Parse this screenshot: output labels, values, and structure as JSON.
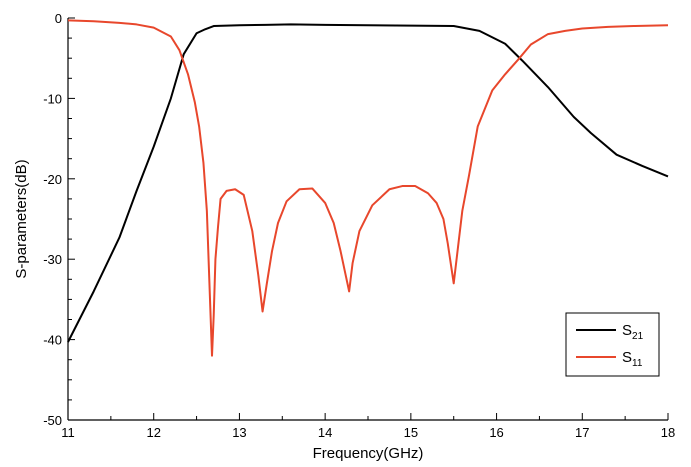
{
  "chart_data": {
    "type": "line",
    "xlabel": "Frequency(GHz)",
    "ylabel": "S-parameters(dB)",
    "xlim": [
      11,
      18
    ],
    "ylim": [
      -50,
      0
    ],
    "x_ticks": [
      "11",
      "12",
      "13",
      "14",
      "15",
      "16",
      "17",
      "18"
    ],
    "y_ticks": [
      "0",
      "-10",
      "-20",
      "-30",
      "-40",
      "-50"
    ],
    "grid": false,
    "legend_position": "bottom-right",
    "series": [
      {
        "name": "S21",
        "label_main": "S",
        "label_sub": "21",
        "color": "#000000",
        "points": [
          [
            11.0,
            -40.3
          ],
          [
            11.3,
            -34.0
          ],
          [
            11.6,
            -27.3
          ],
          [
            11.8,
            -21.5
          ],
          [
            12.0,
            -16.0
          ],
          [
            12.2,
            -10.0
          ],
          [
            12.35,
            -4.5
          ],
          [
            12.5,
            -1.9
          ],
          [
            12.6,
            -1.4
          ],
          [
            12.7,
            -1.0
          ],
          [
            13.0,
            -0.9
          ],
          [
            13.3,
            -0.85
          ],
          [
            13.6,
            -0.8
          ],
          [
            14.0,
            -0.85
          ],
          [
            14.5,
            -0.9
          ],
          [
            15.0,
            -0.95
          ],
          [
            15.5,
            -1.0
          ],
          [
            15.8,
            -1.6
          ],
          [
            16.1,
            -3.2
          ],
          [
            16.3,
            -5.3
          ],
          [
            16.6,
            -8.6
          ],
          [
            16.9,
            -12.3
          ],
          [
            17.1,
            -14.3
          ],
          [
            17.4,
            -17.0
          ],
          [
            17.7,
            -18.4
          ],
          [
            18.0,
            -19.7
          ]
        ]
      },
      {
        "name": "S11",
        "label_main": "S",
        "label_sub": "11",
        "color": "#e8472c",
        "points": [
          [
            11.0,
            -0.3
          ],
          [
            11.3,
            -0.4
          ],
          [
            11.6,
            -0.6
          ],
          [
            11.8,
            -0.8
          ],
          [
            12.0,
            -1.2
          ],
          [
            12.2,
            -2.3
          ],
          [
            12.3,
            -4.0
          ],
          [
            12.4,
            -7.0
          ],
          [
            12.48,
            -10.5
          ],
          [
            12.53,
            -13.5
          ],
          [
            12.58,
            -18.0
          ],
          [
            12.62,
            -24.0
          ],
          [
            12.65,
            -33.0
          ],
          [
            12.68,
            -42.0
          ],
          [
            12.7,
            -37.0
          ],
          [
            12.72,
            -30.0
          ],
          [
            12.75,
            -26.0
          ],
          [
            12.78,
            -22.5
          ],
          [
            12.85,
            -21.5
          ],
          [
            12.95,
            -21.3
          ],
          [
            13.05,
            -22.0
          ],
          [
            13.15,
            -26.5
          ],
          [
            13.22,
            -32.0
          ],
          [
            13.27,
            -36.5
          ],
          [
            13.32,
            -33.0
          ],
          [
            13.38,
            -29.0
          ],
          [
            13.45,
            -25.5
          ],
          [
            13.55,
            -22.8
          ],
          [
            13.7,
            -21.3
          ],
          [
            13.85,
            -21.2
          ],
          [
            14.0,
            -23.0
          ],
          [
            14.1,
            -25.5
          ],
          [
            14.18,
            -29.0
          ],
          [
            14.24,
            -32.0
          ],
          [
            14.28,
            -34.0
          ],
          [
            14.32,
            -30.5
          ],
          [
            14.4,
            -26.5
          ],
          [
            14.55,
            -23.3
          ],
          [
            14.75,
            -21.3
          ],
          [
            14.9,
            -20.9
          ],
          [
            15.05,
            -20.9
          ],
          [
            15.2,
            -21.8
          ],
          [
            15.3,
            -23.0
          ],
          [
            15.38,
            -25.0
          ],
          [
            15.43,
            -28.0
          ],
          [
            15.5,
            -33.0
          ],
          [
            15.55,
            -28.5
          ],
          [
            15.6,
            -24.0
          ],
          [
            15.68,
            -19.5
          ],
          [
            15.78,
            -13.5
          ],
          [
            15.95,
            -9.0
          ],
          [
            16.1,
            -7.0
          ],
          [
            16.25,
            -5.2
          ],
          [
            16.4,
            -3.3
          ],
          [
            16.6,
            -2.0
          ],
          [
            16.8,
            -1.6
          ],
          [
            17.0,
            -1.3
          ],
          [
            17.3,
            -1.1
          ],
          [
            17.6,
            -1.0
          ],
          [
            18.0,
            -0.9
          ]
        ]
      }
    ]
  }
}
